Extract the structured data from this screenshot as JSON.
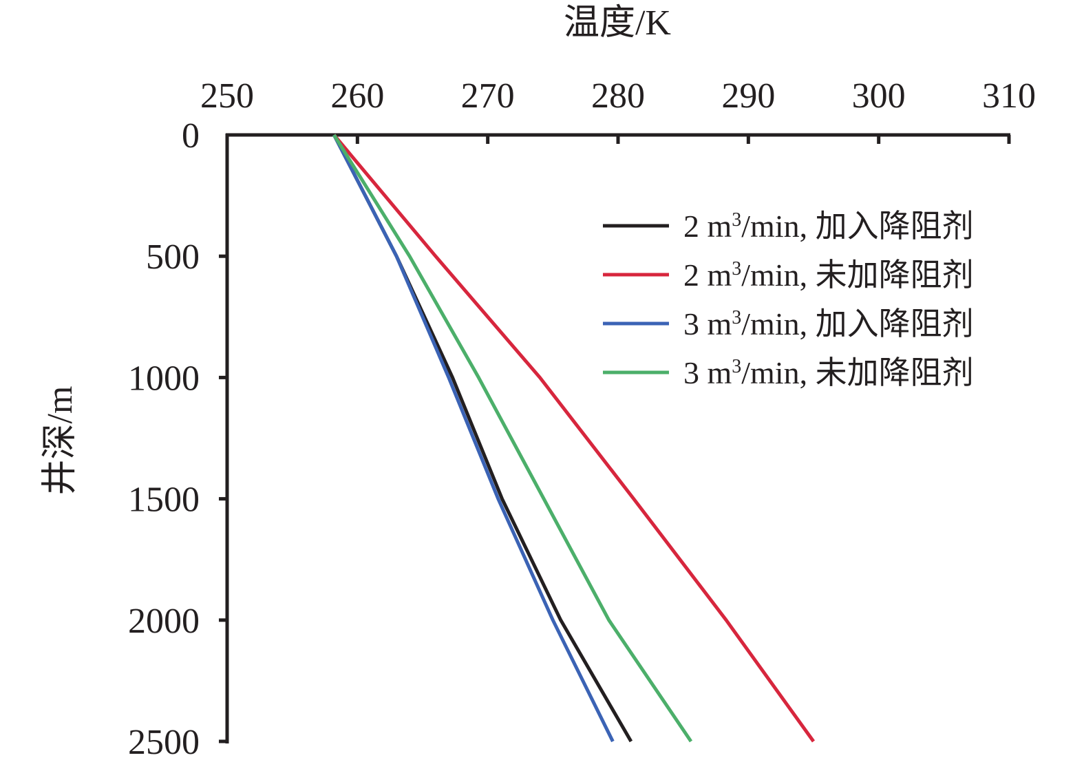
{
  "chart_data": {
    "type": "line",
    "xlabel": "温度/K",
    "ylabel": "井深/m",
    "xlim": [
      250,
      310
    ],
    "ylim": [
      0,
      2500
    ],
    "x_axis_position": "top",
    "y_axis_inverted": true,
    "xticks": [
      "250",
      "260",
      "270",
      "280",
      "290",
      "300",
      "310"
    ],
    "yticks": [
      "0",
      "500",
      "1000",
      "1500",
      "2000",
      "2500"
    ],
    "grid": false,
    "legend_position": "top-right",
    "series": [
      {
        "name": "2 m³/min, 加入降阻剂",
        "legend_parts": [
          "2 m",
          "3",
          "/min, 加入降阻剂"
        ],
        "color": "#231f20",
        "points": [
          [
            258.2,
            0
          ],
          [
            263.0,
            500
          ],
          [
            267.3,
            1000
          ],
          [
            271.1,
            1500
          ],
          [
            275.6,
            2000
          ],
          [
            281.0,
            2500
          ]
        ]
      },
      {
        "name": "2 m³/min, 未加降阻剂",
        "legend_parts": [
          "2 m",
          "3",
          "/min, 未加降阻剂"
        ],
        "color": "#d7263d",
        "points": [
          [
            258.2,
            0
          ],
          [
            266.0,
            500
          ],
          [
            274.0,
            1000
          ],
          [
            281.2,
            1500
          ],
          [
            288.3,
            2000
          ],
          [
            295.0,
            2500
          ]
        ]
      },
      {
        "name": "3 m³/min, 加入降阻剂",
        "legend_parts": [
          "3 m",
          "3",
          "/min, 加入降阻剂"
        ],
        "color": "#3b63b5",
        "points": [
          [
            258.2,
            0
          ],
          [
            263.0,
            500
          ],
          [
            267.0,
            1000
          ],
          [
            270.8,
            1500
          ],
          [
            275.0,
            2000
          ],
          [
            279.6,
            2500
          ]
        ]
      },
      {
        "name": "3 m³/min, 未加降阻剂",
        "legend_parts": [
          "3 m",
          "3",
          "/min, 未加降阻剂"
        ],
        "color": "#4caf6a",
        "points": [
          [
            258.2,
            0
          ],
          [
            264.0,
            500
          ],
          [
            269.3,
            1000
          ],
          [
            274.3,
            1500
          ],
          [
            279.3,
            2000
          ],
          [
            285.6,
            2500
          ]
        ]
      }
    ]
  }
}
